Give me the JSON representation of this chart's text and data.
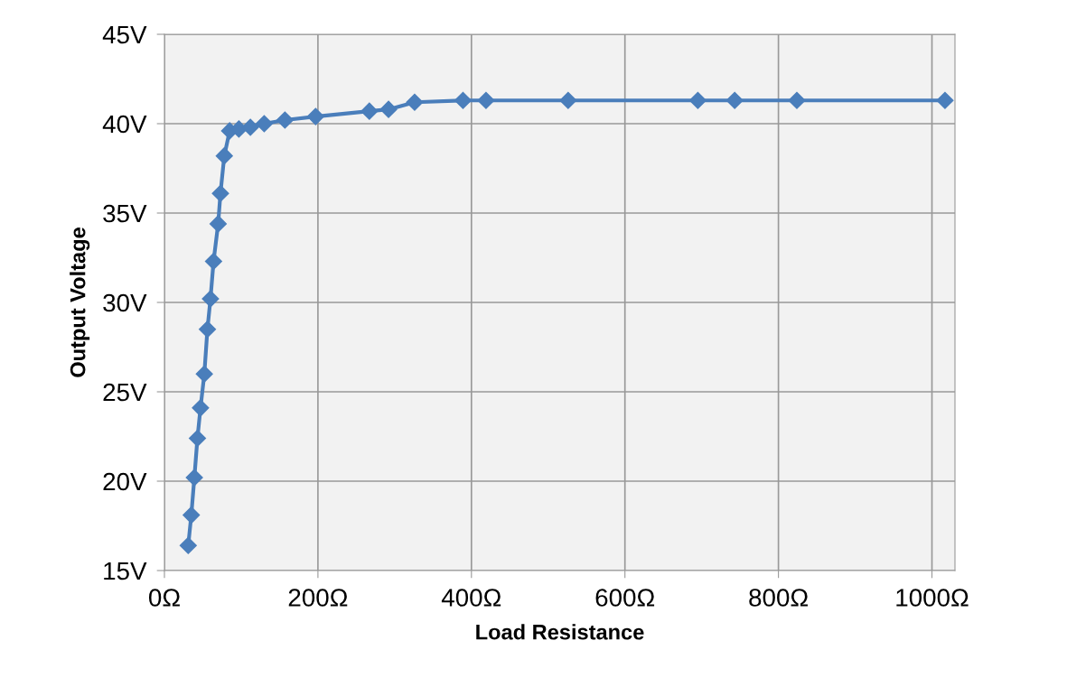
{
  "chart_data": {
    "type": "line",
    "xlabel": "Load Resistance",
    "ylabel": "Output Voltage",
    "series": [
      {
        "color": "#4a7ebb",
        "x": [
          31,
          35,
          39,
          43,
          47,
          52,
          56,
          60,
          64,
          70,
          73,
          78,
          85,
          97,
          112,
          130,
          157,
          197,
          267,
          292,
          326,
          389,
          419,
          526,
          695,
          743,
          824,
          1017
        ],
        "values": [
          16.4,
          18.1,
          20.2,
          22.4,
          24.1,
          26.0,
          28.5,
          30.2,
          32.3,
          34.4,
          36.1,
          38.2,
          39.6,
          39.7,
          39.8,
          40.0,
          40.2,
          40.4,
          40.7,
          40.8,
          41.2,
          41.3,
          41.3,
          41.3,
          41.3,
          41.3,
          41.3,
          41.3
        ]
      }
    ],
    "xlim": [
      0,
      1030
    ],
    "xticks": [
      {
        "value": 0,
        "label": "0Ω"
      },
      {
        "value": 200,
        "label": "200Ω"
      },
      {
        "value": 400,
        "label": "400Ω"
      },
      {
        "value": 600,
        "label": "600Ω"
      },
      {
        "value": 800,
        "label": "800Ω"
      },
      {
        "value": 1000,
        "label": "1000Ω"
      }
    ],
    "ylim": [
      15,
      45
    ],
    "yticks": [
      {
        "value": 15,
        "label": "15V"
      },
      {
        "value": 20,
        "label": "20V"
      },
      {
        "value": 25,
        "label": "25V"
      },
      {
        "value": 30,
        "label": "30V"
      },
      {
        "value": 35,
        "label": "35V"
      },
      {
        "value": 40,
        "label": "40V"
      },
      {
        "value": 45,
        "label": "45V"
      }
    ],
    "grid": true,
    "marker": "diamond",
    "line_style": "solid",
    "legend": false
  }
}
